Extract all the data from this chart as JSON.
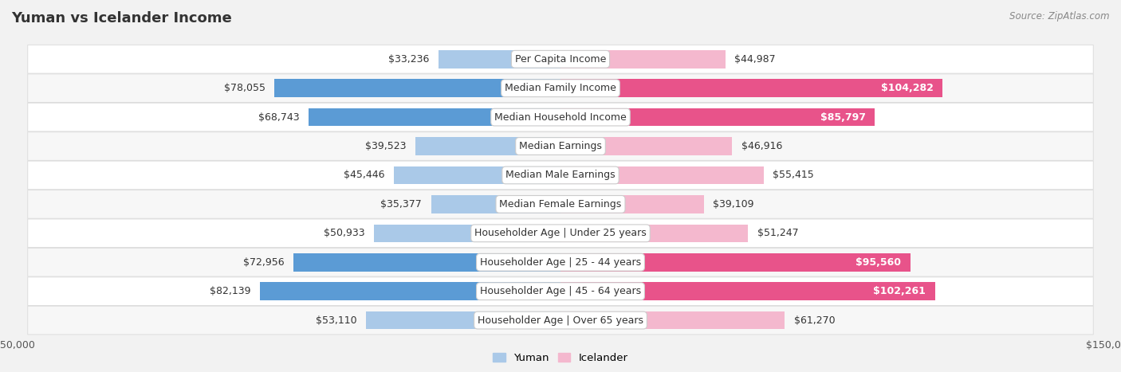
{
  "title": "Yuman vs Icelander Income",
  "source": "Source: ZipAtlas.com",
  "categories": [
    "Per Capita Income",
    "Median Family Income",
    "Median Household Income",
    "Median Earnings",
    "Median Male Earnings",
    "Median Female Earnings",
    "Householder Age | Under 25 years",
    "Householder Age | 25 - 44 years",
    "Householder Age | 45 - 64 years",
    "Householder Age | Over 65 years"
  ],
  "yuman_values": [
    33236,
    78055,
    68743,
    39523,
    45446,
    35377,
    50933,
    72956,
    82139,
    53110
  ],
  "icelander_values": [
    44987,
    104282,
    85797,
    46916,
    55415,
    39109,
    51247,
    95560,
    102261,
    61270
  ],
  "yuman_labels": [
    "$33,236",
    "$78,055",
    "$68,743",
    "$39,523",
    "$45,446",
    "$35,377",
    "$50,933",
    "$72,956",
    "$82,139",
    "$53,110"
  ],
  "icelander_labels": [
    "$44,987",
    "$104,282",
    "$85,797",
    "$46,916",
    "$55,415",
    "$39,109",
    "$51,247",
    "$95,560",
    "$102,261",
    "$61,270"
  ],
  "yuman_color_light": "#aac9e8",
  "yuman_color_dark": "#5b9bd5",
  "icelander_color_light": "#f4b8ce",
  "icelander_color_dark": "#e8538a",
  "icelander_threshold": 70000,
  "yuman_threshold": 0,
  "max_value": 150000,
  "bg_color": "#f2f2f2",
  "row_bg_even": "#ffffff",
  "row_bg_odd": "#f7f7f7",
  "legend_yuman": "Yuman",
  "legend_icelander": "Icelander",
  "label_fontsize": 9,
  "cat_fontsize": 9,
  "title_fontsize": 13
}
